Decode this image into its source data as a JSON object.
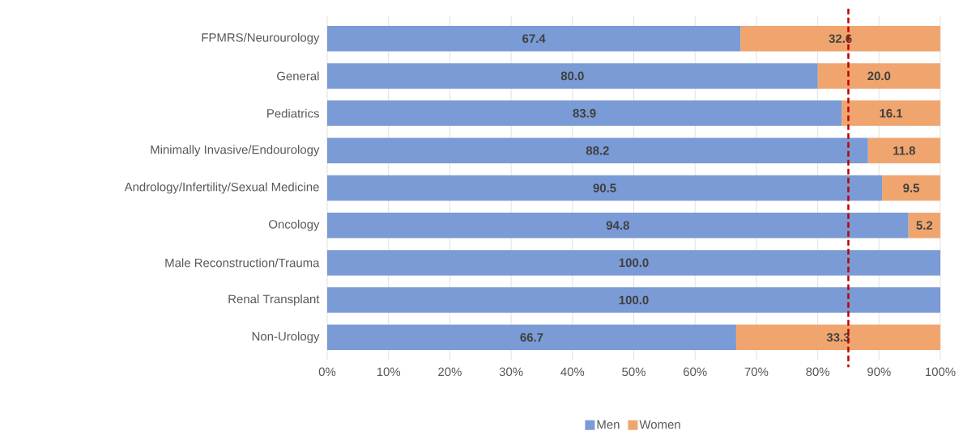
{
  "chart_data": {
    "type": "bar",
    "orientation": "horizontal",
    "stacked": true,
    "categories": [
      "FPMRS/Neurourology",
      "General",
      "Pediatrics",
      "Minimally Invasive/Endourology",
      "Andrology/Infertility/Sexual Medicine",
      "Oncology",
      "Male Reconstruction/Trauma",
      "Renal Transplant",
      "Non-Urology"
    ],
    "series": [
      {
        "name": "Men",
        "color": "#7a9bd5",
        "values": [
          67.4,
          80.0,
          83.9,
          88.2,
          90.5,
          94.8,
          100.0,
          100.0,
          66.7
        ],
        "value_labels": [
          "67.4",
          "80.0",
          "83.9",
          "88.2",
          "90.5",
          "94.8",
          "100.0",
          "100.0",
          "66.7"
        ]
      },
      {
        "name": "Women",
        "color": "#f0a56f",
        "values": [
          32.6,
          20.0,
          16.1,
          11.8,
          9.5,
          5.2,
          0,
          0,
          33.3
        ],
        "value_labels": [
          "32.6",
          "20.0",
          "16.1",
          "11.8",
          "9.5",
          "5.2",
          null,
          null,
          "33.3"
        ]
      }
    ],
    "xlim": [
      0,
      100
    ],
    "xticks": [
      {
        "value": 0,
        "label": "0%"
      },
      {
        "value": 10,
        "label": "10%"
      },
      {
        "value": 20,
        "label": "20%"
      },
      {
        "value": 30,
        "label": "30%"
      },
      {
        "value": 40,
        "label": "40%"
      },
      {
        "value": 50,
        "label": "50%"
      },
      {
        "value": 60,
        "label": "60%"
      },
      {
        "value": 70,
        "label": "70%"
      },
      {
        "value": 80,
        "label": "80%"
      },
      {
        "value": 90,
        "label": "90%"
      },
      {
        "value": 100,
        "label": "100%"
      }
    ],
    "ref_lines": [
      {
        "axis": "x",
        "value": 85,
        "color": "#c00000",
        "line_style": "dashed"
      }
    ],
    "grid": "x",
    "legend": "bottom"
  }
}
